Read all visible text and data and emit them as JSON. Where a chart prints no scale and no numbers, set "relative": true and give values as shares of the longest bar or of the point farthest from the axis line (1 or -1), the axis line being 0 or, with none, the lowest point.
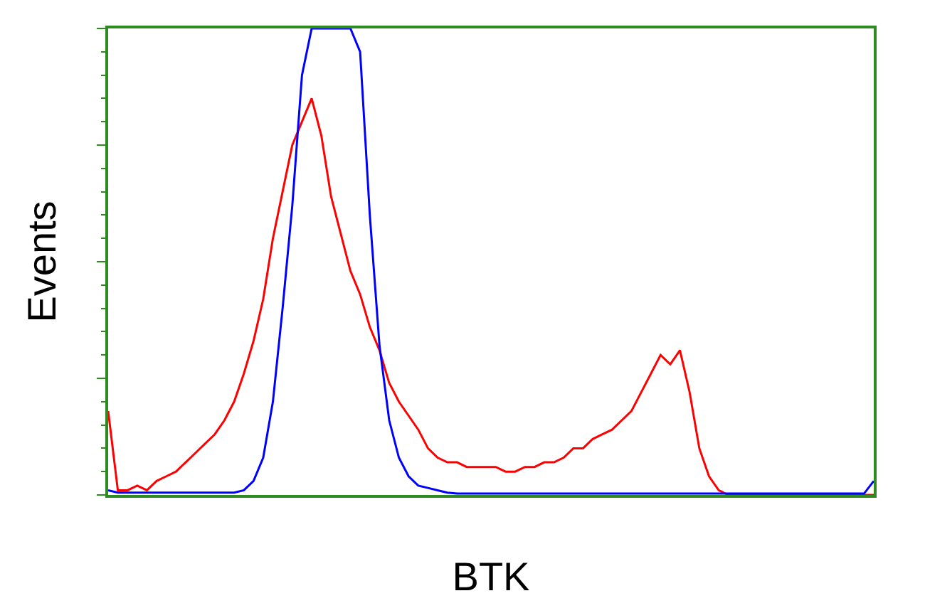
{
  "chart_data": {
    "type": "line",
    "xlabel": "BTK",
    "ylabel": "Events",
    "relative": true,
    "categories": [
      null,
      null,
      null,
      null,
      null,
      null,
      null,
      null,
      null,
      null,
      null,
      null,
      null,
      null,
      null,
      null,
      null,
      null,
      null,
      null,
      null,
      null,
      null,
      null,
      null,
      null,
      null,
      null,
      null,
      null,
      null,
      null,
      null,
      null,
      null,
      null,
      null,
      null,
      null,
      null,
      null,
      null,
      null,
      null,
      null,
      null,
      null,
      null,
      null,
      null,
      null,
      null,
      null,
      null,
      null,
      null,
      null,
      null,
      null,
      null,
      null,
      null,
      null,
      null,
      null,
      null,
      null,
      null,
      null,
      null,
      null,
      null,
      null,
      null,
      null,
      null,
      null,
      null,
      null,
      null
    ],
    "series": [
      {
        "color": "#ff0000",
        "values": [
          0.18,
          0.01,
          0.01,
          0.02,
          0.01,
          0.03,
          0.04,
          0.05,
          0.07,
          0.09,
          0.11,
          0.13,
          0.16,
          0.2,
          0.26,
          0.33,
          0.42,
          0.55,
          0.65,
          0.75,
          0.8,
          0.85,
          0.77,
          0.64,
          0.56,
          0.48,
          0.43,
          0.36,
          0.31,
          0.24,
          0.2,
          0.17,
          0.14,
          0.1,
          0.08,
          0.07,
          0.07,
          0.06,
          0.06,
          0.06,
          0.06,
          0.05,
          0.05,
          0.06,
          0.06,
          0.07,
          0.07,
          0.08,
          0.1,
          0.1,
          0.12,
          0.13,
          0.14,
          0.16,
          0.18,
          0.22,
          0.26,
          0.3,
          0.28,
          0.31,
          0.22,
          0.1,
          0.04,
          0.01,
          0,
          0,
          0,
          0,
          0,
          0,
          0,
          0,
          0,
          0,
          0,
          0,
          0,
          0,
          0,
          0
        ]
      },
      {
        "color": "#0000ff",
        "values": [
          0.01,
          0.005,
          0.005,
          0.005,
          0.005,
          0.005,
          0.005,
          0.005,
          0.005,
          0.005,
          0.005,
          0.005,
          0.005,
          0.005,
          0.01,
          0.03,
          0.08,
          0.2,
          0.4,
          0.62,
          0.9,
          1,
          1,
          1,
          1,
          1,
          0.95,
          0.6,
          0.32,
          0.16,
          0.08,
          0.04,
          0.02,
          0.015,
          0.01,
          0.005,
          0.003,
          0.003,
          0.003,
          0.003,
          0.003,
          0.003,
          0.003,
          0.003,
          0.003,
          0.003,
          0.003,
          0.003,
          0.003,
          0.003,
          0.003,
          0.003,
          0.003,
          0.003,
          0.003,
          0.003,
          0.003,
          0.003,
          0.003,
          0.003,
          0.003,
          0.003,
          0.003,
          0.003,
          0.003,
          0.003,
          0.003,
          0.003,
          0.003,
          0.003,
          0.003,
          0.003,
          0.003,
          0.003,
          0.003,
          0.003,
          0.003,
          0.003,
          0.003,
          0.03
        ]
      }
    ]
  }
}
